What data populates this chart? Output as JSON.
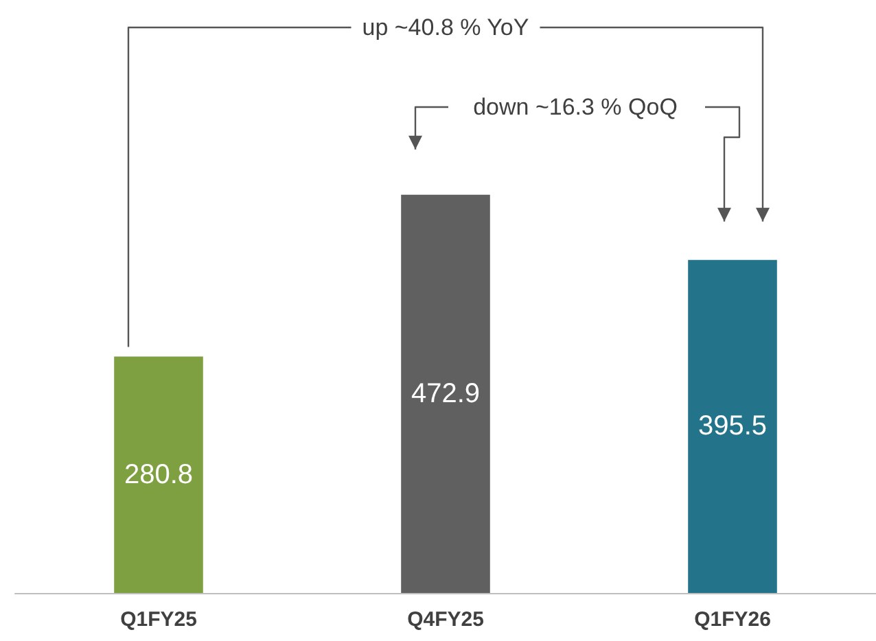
{
  "chart_data": {
    "type": "bar",
    "categories": [
      "Q1FY25",
      "Q4FY25",
      "Q1FY26"
    ],
    "values": [
      280.8,
      472.9,
      395.5
    ],
    "colors": [
      "#7fa040",
      "#606060",
      "#23748a"
    ],
    "data_labels": true,
    "annotations": [
      "up ~40.8 % YoY",
      "down ~16.3 %  QoQ"
    ]
  }
}
